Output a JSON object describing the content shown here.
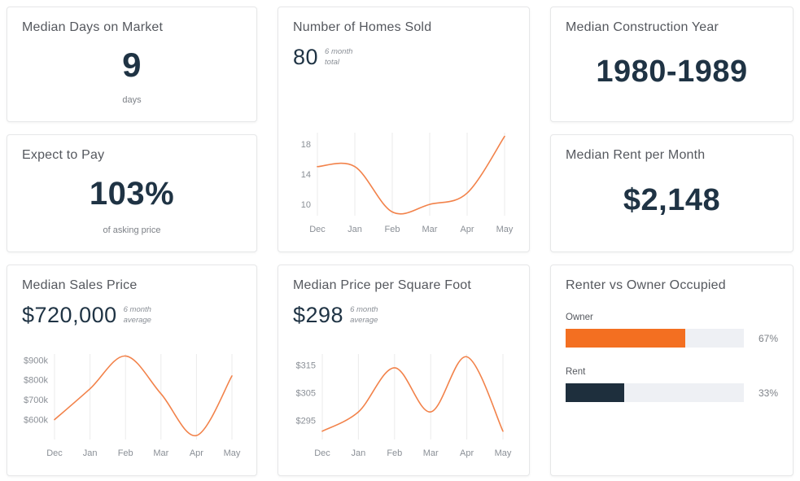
{
  "theme": {
    "accent_orange": "#f36f21",
    "line_orange": "#f2824a",
    "navy": "#1f3344",
    "title_gray": "#55585e",
    "label_gray": "#8a8f96",
    "track_gray": "#eef0f4",
    "grid_gray": "#ebebeb"
  },
  "cards": {
    "days_on_market": {
      "title": "Median Days on Market",
      "value": "9",
      "sublabel": "days"
    },
    "homes_sold": {
      "title": "Number of Homes Sold",
      "value": "80",
      "note_line1": "6 month",
      "note_line2": "total"
    },
    "construction_year": {
      "title": "Median Construction Year",
      "value": "1980-1989"
    },
    "expect_to_pay": {
      "title": "Expect to Pay",
      "value": "103%",
      "sublabel": "of asking price"
    },
    "rent_per_month": {
      "title": "Median Rent per Month",
      "value": "$2,148"
    },
    "sales_price": {
      "title": "Median Sales Price",
      "value": "$720,000",
      "note_line1": "6 month",
      "note_line2": "average"
    },
    "price_per_sqft": {
      "title": "Median Price per Square Foot",
      "value": "$298",
      "note_line1": "6 month",
      "note_line2": "average"
    },
    "renter_owner": {
      "title": "Renter vs Owner Occupied",
      "bars": [
        {
          "label": "Owner",
          "value": 67,
          "display": "67%",
          "color": "#f36f21"
        },
        {
          "label": "Rent",
          "value": 33,
          "display": "33%",
          "color": "#1e2f3d"
        }
      ]
    }
  },
  "chart_data": [
    {
      "id": "homes_sold_chart",
      "type": "line",
      "title": "Number of Homes Sold",
      "categories": [
        "Dec",
        "Jan",
        "Feb",
        "Mar",
        "Apr",
        "May"
      ],
      "values": [
        15,
        15,
        9,
        10,
        11.5,
        19
      ],
      "yticks": [
        {
          "label": "18",
          "value": 18
        },
        {
          "label": "14",
          "value": 14
        },
        {
          "label": "10",
          "value": 10
        }
      ],
      "ylim": [
        8.5,
        19.5
      ],
      "summary_total_6mo": 80,
      "grid": "vertical-only",
      "legend": "none",
      "line_color": "#f2824a"
    },
    {
      "id": "sales_price_chart",
      "type": "line",
      "title": "Median Sales Price",
      "categories": [
        "Dec",
        "Jan",
        "Feb",
        "Mar",
        "Apr",
        "May"
      ],
      "values": [
        600,
        755,
        920,
        730,
        520,
        820
      ],
      "value_unit": "thousand USD",
      "yticks": [
        {
          "label": "$900k",
          "value": 900
        },
        {
          "label": "$800k",
          "value": 800
        },
        {
          "label": "$700k",
          "value": 700
        },
        {
          "label": "$600k",
          "value": 600
        }
      ],
      "ylim": [
        500,
        930
      ],
      "summary_avg_6mo": "$720,000",
      "grid": "vertical-only",
      "legend": "none",
      "line_color": "#f2824a"
    },
    {
      "id": "sqft_chart",
      "type": "line",
      "title": "Median Price per Square Foot",
      "categories": [
        "Dec",
        "Jan",
        "Feb",
        "Mar",
        "Apr",
        "May"
      ],
      "values": [
        291,
        298,
        314,
        298,
        318,
        291
      ],
      "value_unit": "USD",
      "yticks": [
        {
          "label": "$315",
          "value": 315
        },
        {
          "label": "$305",
          "value": 305
        },
        {
          "label": "$295",
          "value": 295
        }
      ],
      "ylim": [
        288,
        319
      ],
      "summary_avg_6mo": "$298",
      "grid": "vertical-only",
      "legend": "none",
      "line_color": "#f2824a"
    }
  ]
}
